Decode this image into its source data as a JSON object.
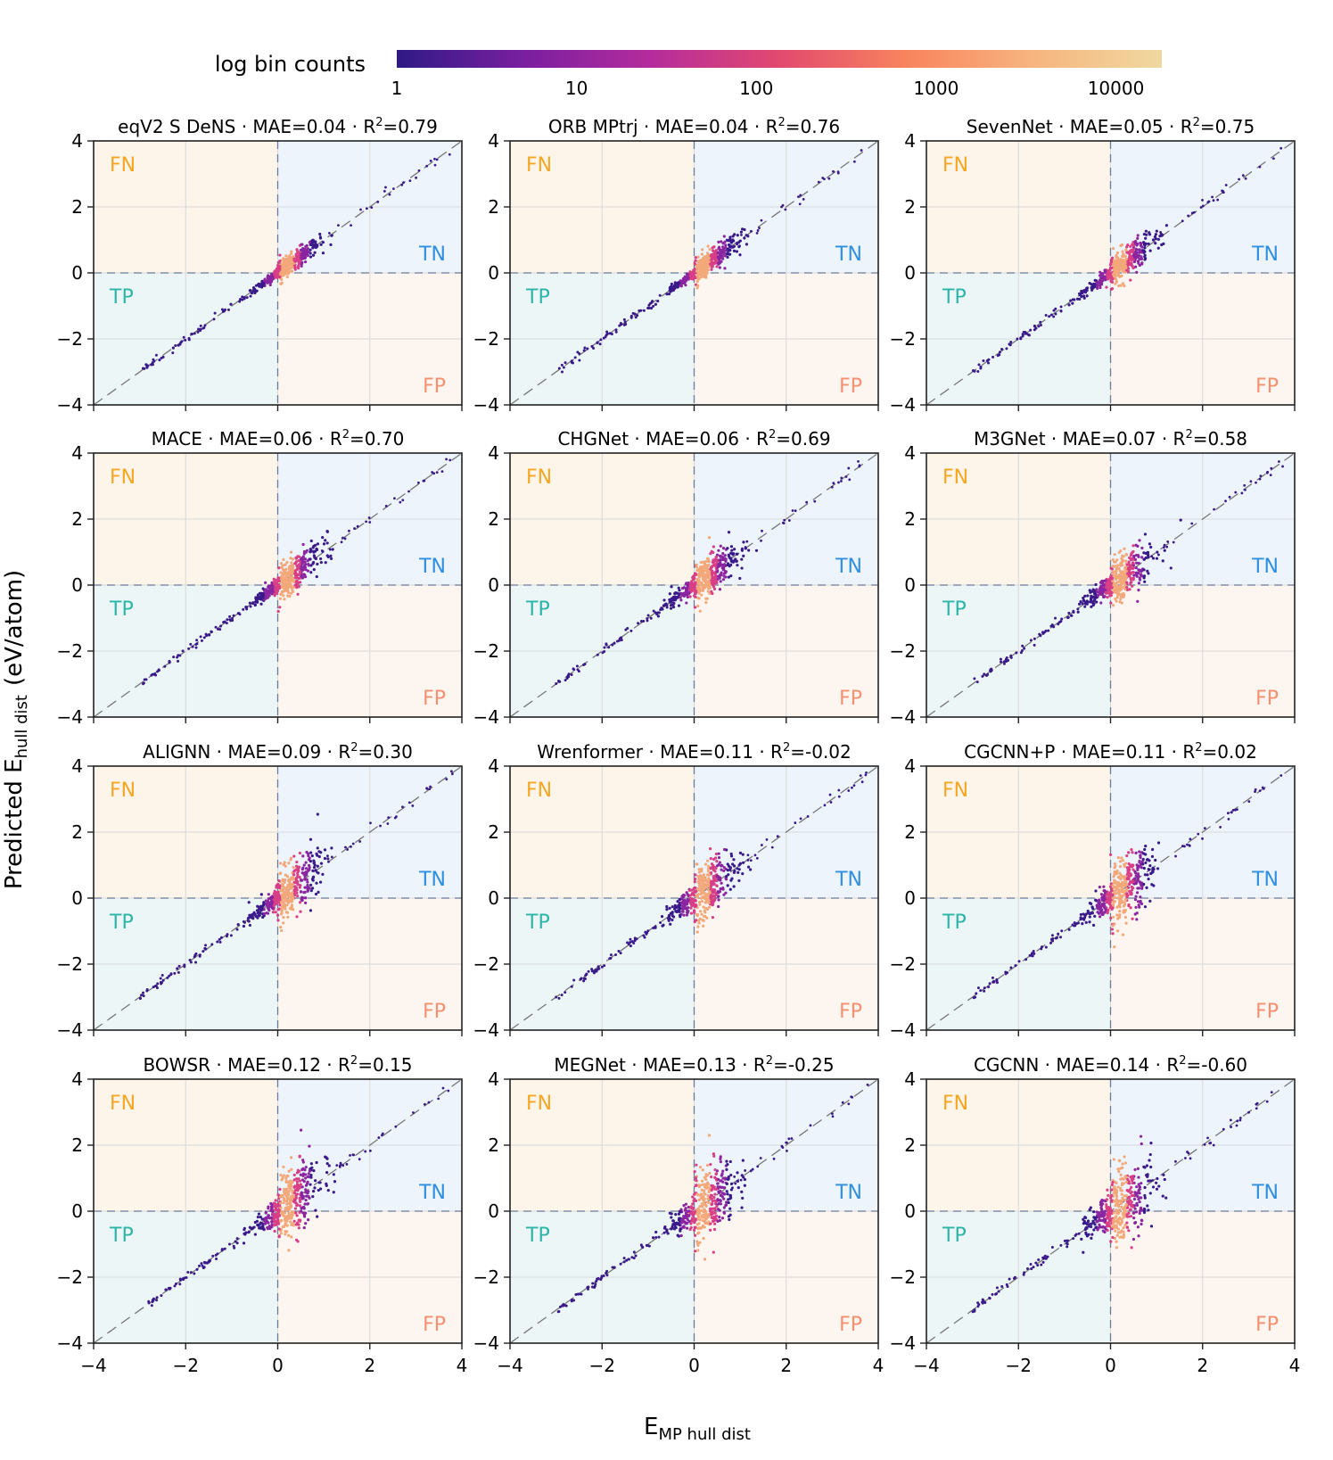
{
  "colorbar": {
    "label": "log bin counts",
    "ticks": [
      "1",
      "10",
      "100",
      "1000",
      "10000"
    ],
    "colorscale": [
      "#2f1a85",
      "#7a1fa0",
      "#b52c9c",
      "#e2496f",
      "#f8845e",
      "#f7b57f",
      "#efd9a0"
    ]
  },
  "axes": {
    "xlabel_main": "E",
    "xlabel_sub": "MP hull dist",
    "ylabel_main": "Predicted E",
    "ylabel_sub": "hull dist",
    "ylabel_unit": "(eV/atom)",
    "xlim": [
      -4,
      4
    ],
    "ylim": [
      -4,
      4
    ],
    "ticks": [
      -4,
      -2,
      0,
      2,
      4
    ],
    "tick_labels": [
      "−4",
      "−2",
      "0",
      "2",
      "4"
    ]
  },
  "quadrants": {
    "fn": {
      "label": "FN",
      "color": "#f5a623",
      "fill": "#fdf5ea"
    },
    "tn": {
      "label": "TN",
      "color": "#2f8fe0",
      "fill": "#eef4fb"
    },
    "tp": {
      "label": "TP",
      "color": "#2bb5a8",
      "fill": "#edf6f6"
    },
    "fp": {
      "label": "FP",
      "color": "#f59070",
      "fill": "#fdf5ef"
    }
  },
  "chart_data": {
    "type": "heatmap",
    "panels": [
      {
        "model": "eqV2 S DeNS",
        "mae": "0.04",
        "r2": "0.79"
      },
      {
        "model": "ORB MPtrj",
        "mae": "0.04",
        "r2": "0.76"
      },
      {
        "model": "SevenNet",
        "mae": "0.05",
        "r2": "0.75"
      },
      {
        "model": "MACE",
        "mae": "0.06",
        "r2": "0.70"
      },
      {
        "model": "CHGNet",
        "mae": "0.06",
        "r2": "0.69"
      },
      {
        "model": "M3GNet",
        "mae": "0.07",
        "r2": "0.58"
      },
      {
        "model": "ALIGNN",
        "mae": "0.09",
        "r2": "0.30"
      },
      {
        "model": "Wrenformer",
        "mae": "0.11",
        "r2": "-0.02"
      },
      {
        "model": "CGCNN+P",
        "mae": "0.11",
        "r2": "0.02"
      },
      {
        "model": "BOWSR",
        "mae": "0.12",
        "r2": "0.15"
      },
      {
        "model": "MEGNet",
        "mae": "0.13",
        "r2": "-0.25"
      },
      {
        "model": "CGCNN",
        "mae": "0.14",
        "r2": "-0.60"
      }
    ]
  }
}
